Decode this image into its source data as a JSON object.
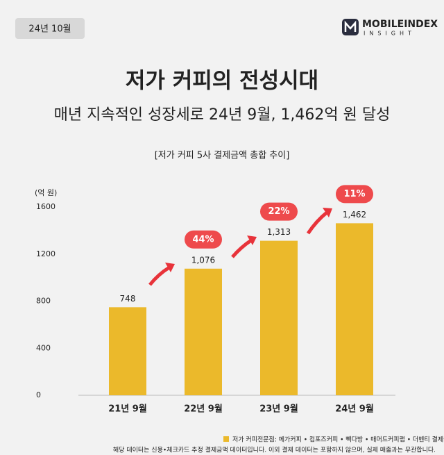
{
  "badge": "24년 10월",
  "logo": {
    "name": "MOBILEINDEX",
    "sub": "INSIGHT"
  },
  "chart_data": {
    "type": "bar",
    "title": "저가 커피의 전성시대",
    "subtitle": "매년 지속적인 성장세로 24년 9월, 1,462억 원 달성",
    "chart_title": "[저가 커피 5사 결제금액 총합 추이]",
    "y_label": "(억 원)",
    "categories": [
      "21년 9월",
      "22년 9월",
      "23년 9월",
      "24년 9월"
    ],
    "series": [
      {
        "name": "저가 커피전문점: 메가커피 • 컴포즈커피 • 빽다방 • 매머드커피랩 • 더벤티 결제금액 총합",
        "color": "#ebb92b",
        "values": [
          748,
          1076,
          1313,
          1462
        ],
        "value_labels": [
          "748",
          "1,076",
          "1,313",
          "1,462"
        ]
      }
    ],
    "annotations": [
      "44%",
      "22%",
      "11%"
    ],
    "ylim": [
      0,
      1600
    ],
    "yticks": [
      0,
      400,
      800,
      1200,
      1600
    ],
    "grid": false,
    "footnote": "해당 데이터는 신용•체크카드 추정 결제금액 데이터입니다. 이외 결제 데이터는 포함하지 않으며, 실제 매출과는 무관합니다."
  }
}
